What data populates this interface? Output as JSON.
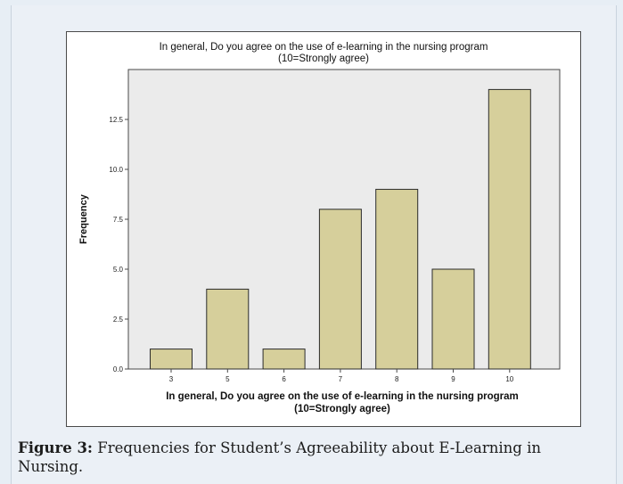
{
  "chart_data": {
    "type": "bar",
    "title": "In general, Do you agree on the use of e-learning in the nursing program",
    "subtitle": "(10=Strongly agree)",
    "xlabel": "In general, Do you agree on the use of e-learning in the nursing program",
    "xlabel_line2": "(10=Strongly agree)",
    "ylabel": "Frequency",
    "categories": [
      "3",
      "5",
      "6",
      "7",
      "8",
      "9",
      "10"
    ],
    "values": [
      1,
      4,
      1,
      8,
      9,
      5,
      14
    ],
    "ylim": [
      0,
      15
    ],
    "yticks": [
      "0.0",
      "2.5",
      "5.0",
      "7.5",
      "10.0",
      "12.5"
    ],
    "bar_color": "#d6cf9b",
    "bar_stroke": "#2b2b2b",
    "plot_background": "#ebebeb",
    "grid": false
  },
  "caption": {
    "label": "Figure 3:",
    "text": " Frequencies for Student’s Agreeability about E-Learning in Nursing."
  }
}
